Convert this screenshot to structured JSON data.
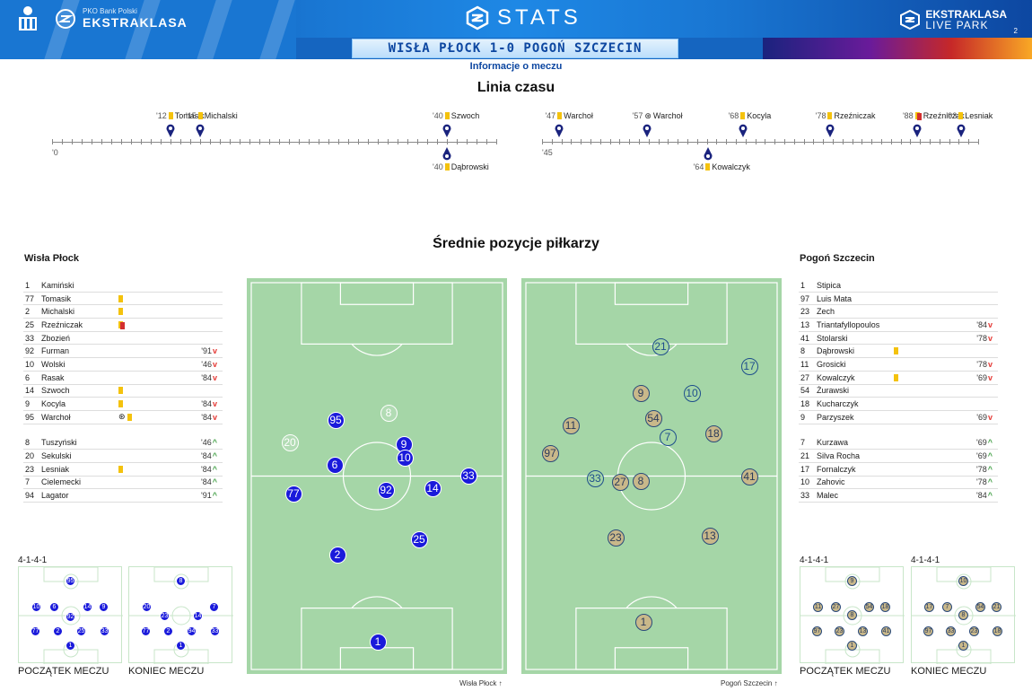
{
  "header": {
    "brand_small": "PKO Bank Polski",
    "brand_big": "EKSTRAKLASA",
    "stats_title": "STATS",
    "livepark_line1": "EKSTRAKLASA",
    "livepark_line2": "LIVE PARK",
    "page_number": "2",
    "score_line": "WISŁA PŁOCK 1-0 POGOŃ SZCZECIN",
    "subtitle": "Informacje o meczu"
  },
  "timeline": {
    "title": "Linia czasu",
    "first_half_start": "'0",
    "second_half_start": "'45",
    "home_events": [
      {
        "min": "'12",
        "name": "Tomasik",
        "kind": "yellow"
      },
      {
        "min": "'15",
        "name": "Michalski",
        "kind": "yellow"
      },
      {
        "min": "'40",
        "name": "Szwoch",
        "kind": "yellow"
      },
      {
        "min": "'47",
        "name": "Warchoł",
        "kind": "yellow"
      },
      {
        "min": "'57",
        "name": "Warchoł",
        "kind": "goal"
      },
      {
        "min": "'68",
        "name": "Kocyla",
        "kind": "yellow"
      },
      {
        "min": "'78",
        "name": "Rzeźniczak",
        "kind": "yellow"
      },
      {
        "min": "'88",
        "name": "Rzeźniczak",
        "kind": "red"
      },
      {
        "min": "'93",
        "name": "Lesniak",
        "kind": "yellow"
      }
    ],
    "away_events": [
      {
        "min": "'40",
        "name": "Dąbrowski",
        "kind": "yellow"
      },
      {
        "min": "'64",
        "name": "Kowalczyk",
        "kind": "yellow"
      }
    ]
  },
  "positions_title": "Średnie pozycje piłkarzy",
  "home": {
    "name": "Wisła Płock",
    "starters": [
      {
        "num": "1",
        "name": "Kamiński",
        "ev": [],
        "sub": ""
      },
      {
        "num": "77",
        "name": "Tomasik",
        "ev": [
          "y"
        ],
        "sub": ""
      },
      {
        "num": "2",
        "name": "Michalski",
        "ev": [
          "y"
        ],
        "sub": ""
      },
      {
        "num": "25",
        "name": "Rzeźniczak",
        "ev": [
          "yr"
        ],
        "sub": ""
      },
      {
        "num": "33",
        "name": "Zbozień",
        "ev": [],
        "sub": ""
      },
      {
        "num": "92",
        "name": "Furman",
        "ev": [],
        "sub": "'91",
        "dir": "down"
      },
      {
        "num": "10",
        "name": "Wolski",
        "ev": [],
        "sub": "'46",
        "dir": "down"
      },
      {
        "num": "6",
        "name": "Rasak",
        "ev": [],
        "sub": "'84",
        "dir": "down"
      },
      {
        "num": "14",
        "name": "Szwoch",
        "ev": [
          "y"
        ],
        "sub": ""
      },
      {
        "num": "9",
        "name": "Kocyla",
        "ev": [
          "y"
        ],
        "sub": "'84",
        "dir": "down"
      },
      {
        "num": "95",
        "name": "Warchoł",
        "ev": [
          "g",
          "y"
        ],
        "sub": "'84",
        "dir": "down"
      }
    ],
    "subs": [
      {
        "num": "8",
        "name": "Tuszyński",
        "ev": [],
        "sub": "'46",
        "dir": "up"
      },
      {
        "num": "20",
        "name": "Sekulski",
        "ev": [],
        "sub": "'84",
        "dir": "up"
      },
      {
        "num": "23",
        "name": "Lesniak",
        "ev": [
          "y"
        ],
        "sub": "'84",
        "dir": "up"
      },
      {
        "num": "7",
        "name": "Cielemecki",
        "ev": [],
        "sub": "'84",
        "dir": "up"
      },
      {
        "num": "94",
        "name": "Lagator",
        "ev": [],
        "sub": "'91",
        "dir": "up"
      }
    ],
    "pitch_caption": "Wisła Płock",
    "formation_start": "4-1-4-1",
    "caption_start": "POCZĄTEK MECZU",
    "caption_end": "KONIEC MECZU"
  },
  "away": {
    "name": "Pogoń Szczecin",
    "starters": [
      {
        "num": "1",
        "name": "Stipica",
        "ev": [],
        "sub": ""
      },
      {
        "num": "97",
        "name": "Luis Mata",
        "ev": [],
        "sub": ""
      },
      {
        "num": "23",
        "name": "Zech",
        "ev": [],
        "sub": ""
      },
      {
        "num": "13",
        "name": "Triantafyllopoulos",
        "ev": [],
        "sub": "'84",
        "dir": "down"
      },
      {
        "num": "41",
        "name": "Stolarski",
        "ev": [],
        "sub": "'78",
        "dir": "down"
      },
      {
        "num": "8",
        "name": "Dąbrowski",
        "ev": [
          "y"
        ],
        "sub": ""
      },
      {
        "num": "11",
        "name": "Grosicki",
        "ev": [],
        "sub": "'78",
        "dir": "down"
      },
      {
        "num": "27",
        "name": "Kowalczyk",
        "ev": [
          "y"
        ],
        "sub": "'69",
        "dir": "down"
      },
      {
        "num": "54",
        "name": "Żurawski",
        "ev": [],
        "sub": ""
      },
      {
        "num": "18",
        "name": "Kucharczyk",
        "ev": [],
        "sub": ""
      },
      {
        "num": "9",
        "name": "Parzyszek",
        "ev": [],
        "sub": "'69",
        "dir": "down"
      }
    ],
    "subs": [
      {
        "num": "7",
        "name": "Kurzawa",
        "ev": [],
        "sub": "'69",
        "dir": "up"
      },
      {
        "num": "21",
        "name": "Silva Rocha",
        "ev": [],
        "sub": "'69",
        "dir": "up"
      },
      {
        "num": "17",
        "name": "Fornalczyk",
        "ev": [],
        "sub": "'78",
        "dir": "up"
      },
      {
        "num": "10",
        "name": "Zahovic",
        "ev": [],
        "sub": "'78",
        "dir": "up"
      },
      {
        "num": "33",
        "name": "Malec",
        "ev": [],
        "sub": "'84",
        "dir": "up"
      }
    ],
    "pitch_caption": "Pogoń Szczecin",
    "formation_start": "4-1-4-1",
    "formation_end": "4-1-4-1",
    "caption_start": "POCZĄTEK MECZU",
    "caption_end": "KONIEC MECZU"
  },
  "colors": {
    "home": "#1a1adb",
    "away": "#c9b88a",
    "pitch": "#a5d6a7",
    "header": "#1565c0"
  }
}
